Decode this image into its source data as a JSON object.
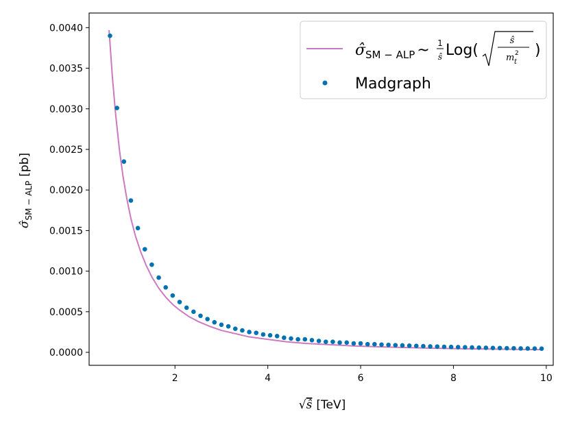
{
  "chart_data": {
    "type": "line",
    "xlabel": "[TeV]",
    "xlabel_symbol": "√ŝ",
    "ylabel": "[pb]",
    "ylabel_symbol": "σ̂",
    "ylabel_subscript": "SM − ALP",
    "xlim": [
      0.15,
      10.15
    ],
    "ylim": [
      -0.00016,
      0.00418
    ],
    "xticks": [
      2,
      4,
      6,
      8,
      10
    ],
    "xtick_labels": [
      "2",
      "4",
      "6",
      "8",
      "10"
    ],
    "yticks": [
      0,
      0.0005,
      0.001,
      0.0015,
      0.002,
      0.0025,
      0.003,
      0.0035,
      0.004
    ],
    "ytick_labels": [
      "0.0000",
      "0.0005",
      "0.0010",
      "0.0015",
      "0.0020",
      "0.0025",
      "0.0030",
      "0.0035",
      "0.0040"
    ],
    "grid": false,
    "legend_position": "top-right",
    "series": [
      {
        "name": "σ̂SM − ALP ~ (1/ŝ) Log(√(ŝ/m_t²))",
        "kind": "line",
        "color": "#cc79c0",
        "x": [
          0.58,
          0.65,
          0.72,
          0.8,
          0.88,
          0.96,
          1.05,
          1.15,
          1.26,
          1.38,
          1.5,
          1.65,
          1.8,
          1.95,
          2.1,
          2.3,
          2.5,
          2.75,
          3.0,
          3.3,
          3.6,
          4.0,
          4.4,
          4.8,
          5.3,
          5.8,
          6.4,
          7.0,
          7.6,
          8.2,
          8.8,
          9.4,
          9.9
        ],
        "values": [
          0.00397,
          0.0034,
          0.00294,
          0.00251,
          0.00217,
          0.0019,
          0.00165,
          0.00143,
          0.00124,
          0.00107,
          0.00093,
          0.00079,
          0.00068,
          0.00059,
          0.00052,
          0.00044,
          0.00038,
          0.00032,
          0.00027,
          0.00023,
          0.00019,
          0.00016,
          0.00013,
          0.00011,
          9.5e-05,
          8e-05,
          6.8e-05,
          5.8e-05,
          5e-05,
          4.4e-05,
          4e-05,
          3.6e-05,
          3.3e-05
        ]
      },
      {
        "name": "Madgraph",
        "kind": "scatter",
        "color": "#0072b2",
        "x": [
          0.6,
          0.75,
          0.9,
          1.05,
          1.2,
          1.35,
          1.5,
          1.65,
          1.8,
          1.95,
          2.1,
          2.25,
          2.4,
          2.55,
          2.7,
          2.85,
          3.0,
          3.15,
          3.3,
          3.45,
          3.6,
          3.75,
          3.9,
          4.05,
          4.2,
          4.35,
          4.5,
          4.65,
          4.8,
          4.95,
          5.1,
          5.25,
          5.4,
          5.55,
          5.7,
          5.85,
          6.0,
          6.15,
          6.3,
          6.45,
          6.6,
          6.75,
          6.9,
          7.05,
          7.2,
          7.35,
          7.5,
          7.65,
          7.8,
          7.95,
          8.1,
          8.25,
          8.4,
          8.55,
          8.7,
          8.85,
          9.0,
          9.15,
          9.3,
          9.45,
          9.6,
          9.75,
          9.9
        ],
        "values": [
          0.0039,
          0.00301,
          0.00235,
          0.00187,
          0.00153,
          0.00127,
          0.00108,
          0.00092,
          0.0008,
          0.0007,
          0.00062,
          0.00055,
          0.0005,
          0.00045,
          0.00041,
          0.00037,
          0.00034,
          0.00032,
          0.00029,
          0.00027,
          0.00025,
          0.00024,
          0.00022,
          0.00021,
          0.0002,
          0.00018,
          0.00017,
          0.00016,
          0.00016,
          0.00015,
          0.00014,
          0.00013,
          0.00013,
          0.00012,
          0.00012,
          0.00011,
          0.00011,
          0.0001,
          0.0001,
          9.5e-05,
          9.2e-05,
          8.8e-05,
          8.5e-05,
          8.2e-05,
          7.9e-05,
          7.6e-05,
          7.3e-05,
          7.1e-05,
          6.8e-05,
          6.6e-05,
          6.4e-05,
          6.2e-05,
          6e-05,
          5.8e-05,
          5.6e-05,
          5.4e-05,
          5.3e-05,
          5.1e-05,
          5e-05,
          4.8e-05,
          4.7e-05,
          4.6e-05,
          4.5e-05
        ]
      }
    ],
    "legend": {
      "line_symbol": "σ̂",
      "line_subscript": "SM − ALP",
      "line_tilde": "~",
      "line_frac_num": "1",
      "line_frac_den": "ŝ",
      "line_log": "Log(",
      "line_inner_num": "ŝ",
      "line_inner_den": "m",
      "line_inner_den_sub": "t",
      "line_inner_den_sup": "2",
      "line_close": ")",
      "scatter_label": "Madgraph"
    }
  }
}
